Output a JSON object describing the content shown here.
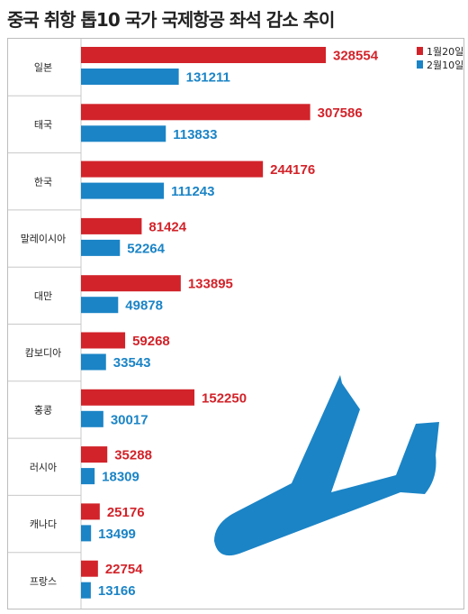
{
  "title": "중국 취항 톱10 국가 국제항공 좌석 감소 추이",
  "colors": {
    "s1": "#d2232a",
    "s2": "#1b84c6",
    "plane": "#1b84c6",
    "border": "#bdbdbd",
    "divider": "#c8c8c8"
  },
  "decor": {
    "plane_icon": "airplane-icon"
  },
  "chart_data": {
    "type": "bar",
    "orientation": "horizontal",
    "categories": [
      "일본",
      "태국",
      "한국",
      "말레이시아",
      "대만",
      "캄보디아",
      "홍콩",
      "러시아",
      "캐나다",
      "프랑스"
    ],
    "series": [
      {
        "name": "1월20일",
        "color": "#d2232a",
        "values": [
          328554,
          307586,
          244176,
          81424,
          133895,
          59268,
          152250,
          35288,
          25176,
          22754
        ]
      },
      {
        "name": "2월10일",
        "color": "#1b84c6",
        "values": [
          131211,
          113833,
          111243,
          52264,
          49878,
          33543,
          30017,
          18309,
          13499,
          13166
        ]
      }
    ],
    "xlim": [
      0,
      328554
    ],
    "legend": "top-right",
    "grid": false
  }
}
